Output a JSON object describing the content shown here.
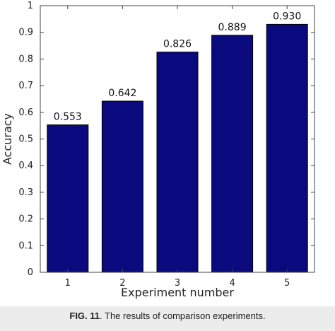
{
  "chart_data": {
    "type": "bar",
    "categories": [
      "1",
      "2",
      "3",
      "4",
      "5"
    ],
    "values": [
      0.553,
      0.642,
      0.826,
      0.889,
      0.93
    ],
    "data_labels": [
      "0.553",
      "0.642",
      "0.826",
      "0.889",
      "0.930"
    ],
    "xlabel": "Experiment number",
    "ylabel": "Accuracy",
    "ylim": [
      0,
      1
    ],
    "yticks": [
      "0",
      "0.1",
      "0.2",
      "0.3",
      "0.4",
      "0.5",
      "0.6",
      "0.7",
      "0.8",
      "0.9",
      "1"
    ],
    "grid": false,
    "bar_color": "#0a0a7e"
  },
  "caption": {
    "label": "FIG. 11",
    "text": ". The results of comparison experiments."
  }
}
